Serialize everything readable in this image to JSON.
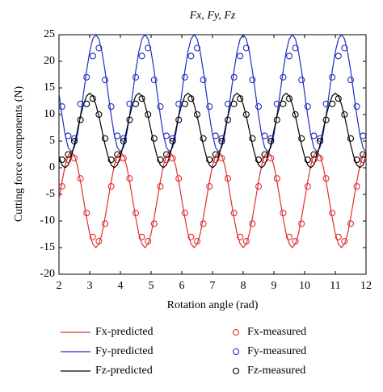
{
  "chart_data": {
    "type": "line",
    "title": "Fx, Fy, Fz",
    "xlabel": "Rotation angle (rad)",
    "ylabel": "Cutting force components (N)",
    "xlim": [
      2,
      12
    ],
    "xticks": [
      2,
      3,
      4,
      5,
      6,
      7,
      8,
      9,
      10,
      11,
      12
    ],
    "ylim": [
      -20,
      25
    ],
    "yticks": [
      -20,
      -15,
      -10,
      -5,
      0,
      5,
      10,
      15,
      20,
      25
    ],
    "x": [
      2,
      2.1,
      2.2,
      2.3,
      2.4,
      2.5,
      2.6,
      2.7,
      2.8,
      2.9,
      3,
      3.1,
      3.2,
      3.3,
      3.4,
      3.5,
      3.6,
      3.7,
      3.8,
      3.9,
      4,
      4.1,
      4.2,
      4.3,
      4.4,
      4.5,
      4.6,
      4.7,
      4.8,
      4.9,
      5,
      5.1,
      5.2,
      5.3,
      5.4,
      5.5,
      5.6,
      5.7,
      5.8,
      5.9,
      6,
      6.1,
      6.2,
      6.3,
      6.4,
      6.5,
      6.6,
      6.7,
      6.8,
      6.9,
      7,
      7.1,
      7.2,
      7.3,
      7.4,
      7.5,
      7.6,
      7.7,
      7.8,
      7.9,
      8,
      8.1,
      8.2,
      8.3,
      8.4,
      8.5,
      8.6,
      8.7,
      8.8,
      8.9,
      9,
      9.1,
      9.2,
      9.3,
      9.4,
      9.5,
      9.6,
      9.7,
      9.8,
      9.9,
      10,
      10.1,
      10.2,
      10.3,
      10.4,
      10.5,
      10.6,
      10.7,
      10.8,
      10.9,
      11,
      11.1,
      11.2,
      11.3,
      11.4,
      11.5,
      11.6,
      11.7,
      11.8,
      11.9,
      12
    ],
    "series": [
      {
        "name": "Fx-predicted",
        "color": "#e03030",
        "style": "line",
        "values": [
          -6,
          -2.6,
          0.4,
          2.3,
          3,
          2.3,
          0.4,
          -2.6,
          -6,
          -9.4,
          -12.4,
          -14.3,
          -15,
          -14.3,
          -12.4,
          -9.4,
          -6,
          -2.6,
          0.4,
          2.3,
          3,
          2.3,
          0.4,
          -2.6,
          -6,
          -9.4,
          -12.4,
          -14.3,
          -15,
          -14.3,
          -12.4,
          -9.4,
          -6,
          -2.6,
          0.4,
          2.3,
          3,
          2.3,
          0.4,
          -2.6,
          -6,
          -9.4,
          -12.4,
          -14.3,
          -15,
          -14.3,
          -12.4,
          -9.4,
          -6,
          -2.6,
          0.4,
          2.3,
          3,
          2.3,
          0.4,
          -2.6,
          -6,
          -9.4,
          -12.4,
          -14.3,
          -15,
          -14.3,
          -12.4,
          -9.4,
          -6,
          -2.6,
          0.4,
          2.3,
          3,
          2.3,
          0.4,
          -2.6,
          -6,
          -9.4,
          -12.4,
          -14.3,
          -15,
          -14.3,
          -12.4,
          -9.4,
          -6,
          -2.6,
          0.4,
          2.3,
          3,
          2.3,
          0.4,
          -2.6,
          -6,
          -9.4,
          -12.4,
          -14.3,
          -15,
          -14.3,
          -12.4,
          -9.4,
          -6,
          -2.6,
          0.4,
          2.3,
          3
        ]
      },
      {
        "name": "Fy-predicted",
        "color": "#2030c0",
        "style": "line",
        "values": [
          14,
          9.8,
          6.2,
          3.8,
          3,
          3.8,
          6.2,
          9.8,
          14,
          18.2,
          21.8,
          24.2,
          25,
          24.2,
          21.8,
          18.2,
          14,
          9.8,
          6.2,
          3.8,
          3,
          3.8,
          6.2,
          9.8,
          14,
          18.2,
          21.8,
          24.2,
          25,
          24.2,
          21.8,
          18.2,
          14,
          9.8,
          6.2,
          3.8,
          3,
          3.8,
          6.2,
          9.8,
          14,
          18.2,
          21.8,
          24.2,
          25,
          24.2,
          21.8,
          18.2,
          14,
          9.8,
          6.2,
          3.8,
          3,
          3.8,
          6.2,
          9.8,
          14,
          18.2,
          21.8,
          24.2,
          25,
          24.2,
          21.8,
          18.2,
          14,
          9.8,
          6.2,
          3.8,
          3,
          3.8,
          6.2,
          9.8,
          14,
          18.2,
          21.8,
          24.2,
          25,
          24.2,
          21.8,
          18.2,
          14,
          9.8,
          6.2,
          3.8,
          3,
          3.8,
          6.2,
          9.8,
          14,
          18.2,
          21.8,
          24.2,
          25,
          24.2,
          21.8,
          18.2,
          14,
          9.8,
          6.2,
          3.8,
          3
        ]
      },
      {
        "name": "Fz-predicted",
        "color": "#000000",
        "style": "line",
        "values": [
          2.1,
          0.5,
          0,
          0.5,
          2.1,
          4.3,
          7,
          9.7,
          11.9,
          13.5,
          14,
          13.5,
          11.9,
          9.7,
          7,
          4.3,
          2.1,
          0.5,
          0,
          0.5,
          2.1,
          4.3,
          7,
          9.7,
          11.9,
          13.5,
          14,
          13.5,
          11.9,
          9.7,
          7,
          4.3,
          2.1,
          0.5,
          0,
          0.5,
          2.1,
          4.3,
          7,
          9.7,
          11.9,
          13.5,
          14,
          13.5,
          11.9,
          9.7,
          7,
          4.3,
          2.1,
          0.5,
          0,
          0.5,
          2.1,
          4.3,
          7,
          9.7,
          11.9,
          13.5,
          14,
          13.5,
          11.9,
          9.7,
          7,
          4.3,
          2.1,
          0.5,
          0,
          0.5,
          2.1,
          4.3,
          7,
          9.7,
          11.9,
          13.5,
          14,
          13.5,
          11.9,
          9.7,
          7,
          4.3,
          2.1,
          0.5,
          0,
          0.5,
          2.1,
          4.3,
          7,
          9.7,
          11.9,
          13.5,
          14,
          13.5,
          11.9,
          9.7,
          7,
          4.3,
          2.1,
          0.5,
          0,
          0.5,
          2.1
        ]
      },
      {
        "name": "Fx-measured",
        "color": "#e03030",
        "style": "marker",
        "x": [
          2.1,
          2.3,
          2.5,
          2.7,
          2.9,
          3.1,
          3.3,
          3.5,
          3.7,
          3.9,
          4.1,
          4.3,
          4.5,
          4.7,
          4.9,
          5.1,
          5.3,
          5.5,
          5.7,
          5.9,
          6.1,
          6.3,
          6.5,
          6.7,
          6.9,
          7.1,
          7.3,
          7.5,
          7.7,
          7.9,
          8.1,
          8.3,
          8.5,
          8.7,
          8.9,
          9.1,
          9.3,
          9.5,
          9.7,
          9.9,
          10.1,
          10.3,
          10.5,
          10.7,
          10.9,
          11.1,
          11.3,
          11.5,
          11.7,
          11.9
        ],
        "values": [
          -3.5,
          1.5,
          1.8,
          -2,
          -8.5,
          -13,
          -13.8,
          -10.5,
          -3.5,
          1.5,
          1.8,
          -2,
          -8.5,
          -13,
          -13.8,
          -10.5,
          -3.5,
          1.5,
          1.8,
          -2,
          -8.5,
          -13,
          -13.8,
          -10.5,
          -3.5,
          1.5,
          1.8,
          -2,
          -8.5,
          -13,
          -13.8,
          -10.5,
          -3.5,
          1.5,
          1.8,
          -2,
          -8.5,
          -13,
          -13.8,
          -10.5,
          -3.5,
          1.5,
          1.8,
          -2,
          -8.5,
          -13,
          -13.8,
          -10.5,
          -3.5,
          1.5
        ]
      },
      {
        "name": "Fy-measured",
        "color": "#2030c0",
        "style": "marker",
        "x": [
          2.1,
          2.3,
          2.5,
          2.7,
          2.9,
          3.1,
          3.3,
          3.5,
          3.7,
          3.9,
          4.1,
          4.3,
          4.5,
          4.7,
          4.9,
          5.1,
          5.3,
          5.5,
          5.7,
          5.9,
          6.1,
          6.3,
          6.5,
          6.7,
          6.9,
          7.1,
          7.3,
          7.5,
          7.7,
          7.9,
          8.1,
          8.3,
          8.5,
          8.7,
          8.9,
          9.1,
          9.3,
          9.5,
          9.7,
          9.9,
          10.1,
          10.3,
          10.5,
          10.7,
          10.9,
          11.1,
          11.3,
          11.5,
          11.7,
          11.9
        ],
        "values": [
          11.5,
          6,
          5.5,
          12,
          17,
          21,
          22.5,
          16.5,
          11.5,
          6,
          5.5,
          12,
          17,
          21,
          22.5,
          16.5,
          11.5,
          6,
          5.5,
          12,
          17,
          21,
          22.5,
          16.5,
          11.5,
          6,
          5.5,
          12,
          17,
          21,
          22.5,
          16.5,
          11.5,
          6,
          5.5,
          12,
          17,
          21,
          22.5,
          16.5,
          11.5,
          6,
          5.5,
          12,
          17,
          21,
          22.5,
          16.5,
          11.5,
          6
        ]
      },
      {
        "name": "Fz-measured",
        "color": "#000000",
        "style": "marker",
        "x": [
          2.1,
          2.3,
          2.5,
          2.7,
          2.9,
          3.1,
          3.3,
          3.5,
          3.7,
          3.9,
          4.1,
          4.3,
          4.5,
          4.7,
          4.9,
          5.1,
          5.3,
          5.5,
          5.7,
          5.9,
          6.1,
          6.3,
          6.5,
          6.7,
          6.9,
          7.1,
          7.3,
          7.5,
          7.7,
          7.9,
          8.1,
          8.3,
          8.5,
          8.7,
          8.9,
          9.1,
          9.3,
          9.5,
          9.7,
          9.9,
          10.1,
          10.3,
          10.5,
          10.7,
          10.9,
          11.1,
          11.3,
          11.5,
          11.7,
          11.9
        ],
        "values": [
          1.5,
          2.5,
          5,
          9,
          12,
          13,
          10,
          5.5,
          1.5,
          2.5,
          5,
          9,
          12,
          13,
          10,
          5.5,
          1.5,
          2.5,
          5,
          9,
          12,
          13,
          10,
          5.5,
          1.5,
          2.5,
          5,
          9,
          12,
          13,
          10,
          5.5,
          1.5,
          2.5,
          5,
          9,
          12,
          13,
          10,
          5.5,
          1.5,
          2.5,
          5,
          9,
          12,
          13,
          10,
          5.5,
          1.5,
          2.5
        ]
      }
    ]
  }
}
